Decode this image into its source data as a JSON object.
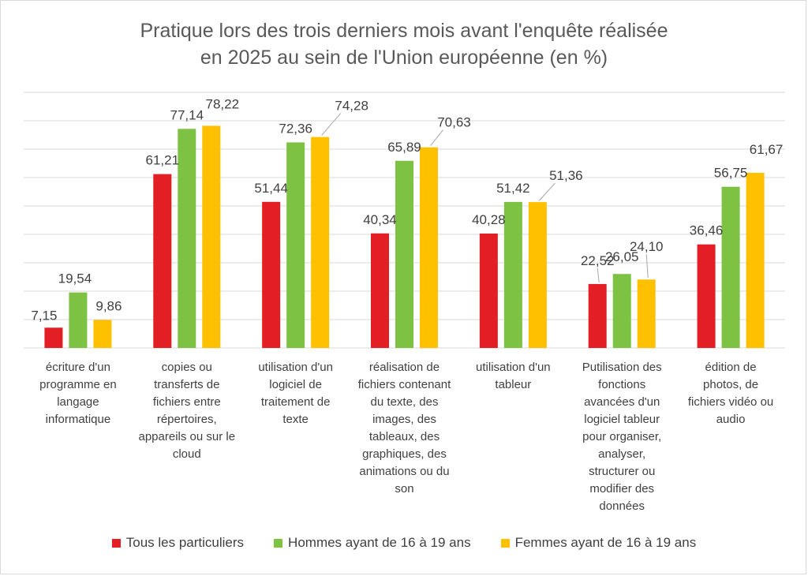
{
  "chart_data": {
    "type": "bar",
    "title_lines": [
      "Pratique lors des trois derniers mois avant l'enquête réalisée",
      "en 2025 au sein de l'Union européenne (en %)"
    ],
    "categories": [
      [
        "écriture d'un",
        "programme en",
        "langage",
        "informatique"
      ],
      [
        "copies ou",
        "transferts de",
        "fichiers entre",
        "répertoires,",
        "appareils ou sur le",
        "cloud"
      ],
      [
        "utilisation d'un",
        "logiciel de",
        "traitement de",
        "texte"
      ],
      [
        "réalisation de",
        "fichiers contenant",
        "du texte, des",
        "images, des",
        "tableaux, des",
        "graphiques, des",
        "animations ou du",
        "son"
      ],
      [
        "utilisation d'un",
        "tableur"
      ],
      [
        "Putilisation des",
        "fonctions",
        "avancées d'un",
        "logiciel tableur",
        "pour organiser,",
        "analyser,",
        "structurer ou",
        "modifier des",
        "données"
      ],
      [
        "édition de",
        "photos, de",
        "fichiers vidéo ou",
        "audio"
      ]
    ],
    "series": [
      {
        "name": "Tous les particuliers",
        "color": "#e31e24",
        "values": [
          7.15,
          61.21,
          51.44,
          40.34,
          40.28,
          22.52,
          36.46
        ],
        "labels": [
          "7,15",
          "61,21",
          "51,44",
          "40,34",
          "40,28",
          "22,52",
          "36,46"
        ]
      },
      {
        "name": "Hommes ayant de 16 à 19 ans",
        "color": "#7dc242",
        "values": [
          19.54,
          77.14,
          72.36,
          65.89,
          51.42,
          26.05,
          56.75
        ],
        "labels": [
          "19,54",
          "77,14",
          "72,36",
          "65,89",
          "51,42",
          "26,05",
          "56,75"
        ]
      },
      {
        "name": "Femmes ayant de 16 à 19 ans",
        "color": "#ffc000",
        "values": [
          9.86,
          78.22,
          74.28,
          70.63,
          51.36,
          24.1,
          61.67
        ],
        "labels": [
          "9,86",
          "78,22",
          "74,28",
          "70,63",
          "51,36",
          "24,10",
          "61,67"
        ]
      }
    ],
    "ylim": [
      0,
      90
    ],
    "gridlines": true,
    "y_axis_labels_shown": false,
    "legend_position": "bottom",
    "gridline_color": "#d9d9d9",
    "text_color": "#404040",
    "title_color": "#595959"
  }
}
